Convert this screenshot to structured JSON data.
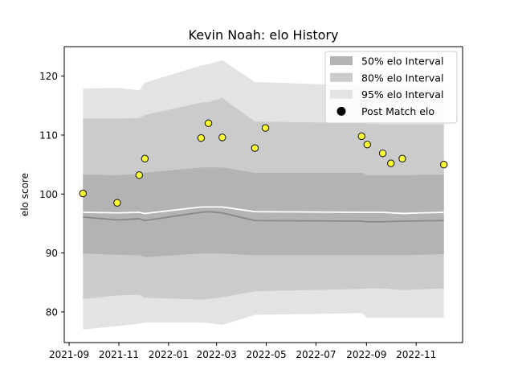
{
  "chart_data": {
    "type": "line",
    "title": "Kevin Noah: elo History",
    "xlabel": "",
    "ylabel": "elo score",
    "xlim": [
      "2021-08-26",
      "2022-12-28"
    ],
    "ylim": [
      74.8,
      125
    ],
    "x_ticks": [
      "2021-09",
      "2021-11",
      "2022-01",
      "2022-03",
      "2022-05",
      "2022-07",
      "2022-09",
      "2022-11"
    ],
    "y_ticks": [
      80,
      90,
      100,
      110,
      120
    ],
    "legend": {
      "placement": "top-right",
      "entries": [
        "50% elo Interval",
        "80% elo Interval",
        "95% elo Interval",
        "Post Match elo"
      ]
    },
    "grid": false,
    "colors": {
      "band_50": "#b3b3b3",
      "band_80": "#cbcbcb",
      "band_95": "#e3e3e3",
      "mean_line": "#ffffff",
      "median_line": "#888888",
      "point_fill": "#ffff33",
      "point_edge": "#222222"
    },
    "bands": {
      "x": [
        "2021-09-18",
        "2021-10-30",
        "2021-11-26",
        "2021-12-03",
        "2022-02-10",
        "2022-02-19",
        "2022-03-08",
        "2022-04-17",
        "2022-08-26",
        "2022-09-02",
        "2022-09-21",
        "2022-10-15",
        "2022-12-05"
      ],
      "p95_low": [
        77.0,
        77.6,
        78.0,
        78.2,
        78.2,
        78.1,
        77.8,
        79.5,
        79.8,
        79.0,
        79.0,
        79.0,
        79.0
      ],
      "p95_high": [
        117.9,
        118.0,
        117.6,
        118.9,
        121.8,
        122.0,
        122.7,
        119.0,
        118.4,
        118.5,
        118.4,
        118.4,
        118.4
      ],
      "p80_low": [
        82.2,
        82.8,
        82.9,
        82.4,
        82.1,
        82.2,
        82.5,
        83.5,
        83.9,
        84.0,
        84.0,
        83.7,
        84.0
      ],
      "p80_high": [
        112.8,
        112.8,
        112.9,
        113.4,
        115.5,
        115.6,
        116.3,
        112.3,
        112.0,
        111.9,
        111.8,
        111.8,
        111.8
      ],
      "p50_low": [
        89.9,
        89.7,
        89.6,
        89.3,
        89.9,
        89.9,
        89.9,
        89.6,
        89.6,
        89.6,
        89.6,
        89.6,
        89.8
      ],
      "p50_high": [
        103.3,
        103.2,
        103.4,
        103.6,
        104.5,
        104.5,
        104.5,
        103.6,
        103.6,
        103.2,
        103.2,
        103.2,
        103.3
      ],
      "mean": [
        96.9,
        96.8,
        96.9,
        96.7,
        97.8,
        97.8,
        97.8,
        97.0,
        96.9,
        96.9,
        96.9,
        96.7,
        96.9
      ],
      "median": [
        96.1,
        95.6,
        95.8,
        95.5,
        96.9,
        97.0,
        96.8,
        95.5,
        95.4,
        95.3,
        95.3,
        95.4,
        95.5
      ]
    },
    "points": {
      "name": "Post Match elo",
      "x": [
        "2021-09-18",
        "2021-10-30",
        "2021-11-26",
        "2021-12-03",
        "2022-02-10",
        "2022-02-19",
        "2022-03-08",
        "2022-04-17",
        "2022-04-30",
        "2022-08-26",
        "2022-09-02",
        "2022-09-21",
        "2022-10-01",
        "2022-10-15",
        "2022-12-05"
      ],
      "y": [
        100.1,
        98.5,
        103.2,
        106.0,
        109.5,
        112.0,
        109.6,
        107.8,
        111.2,
        109.8,
        108.4,
        106.9,
        105.2,
        106.0,
        105.0
      ]
    }
  }
}
